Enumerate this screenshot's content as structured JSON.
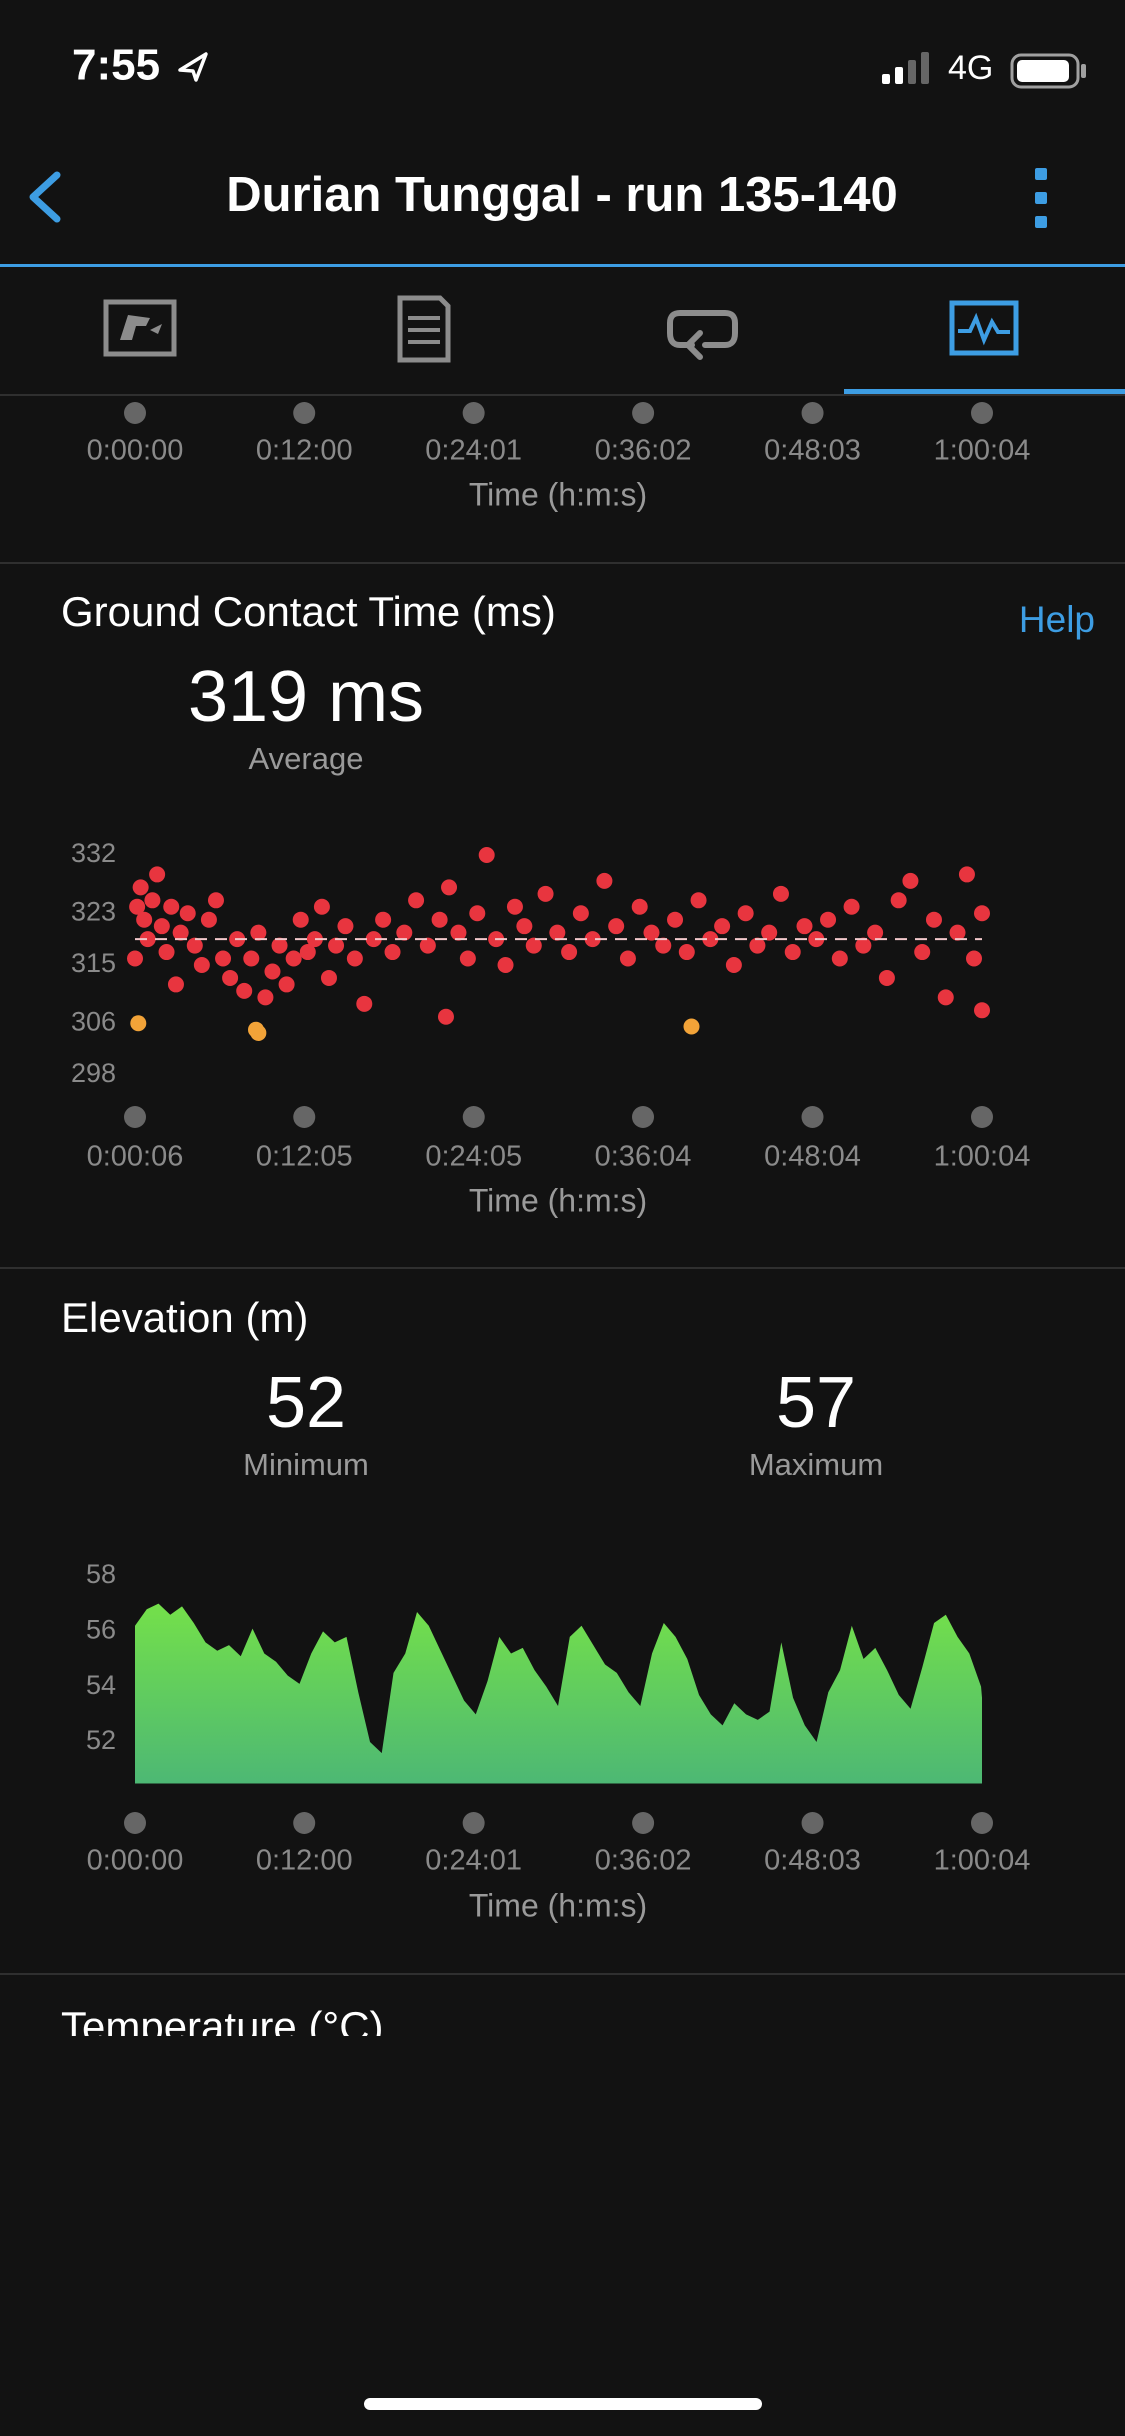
{
  "status_bar": {
    "time": "7:55",
    "network": "4G"
  },
  "header": {
    "title": "Durian Tunggal - run 135-140"
  },
  "next_section": {
    "title": "Temperature (°C)"
  },
  "chart_data": [
    {
      "type": "axis",
      "xlabel": "Time (h:m:s)",
      "xlim": [
        0,
        3604
      ],
      "xticks": [
        {
          "value": 0,
          "label": "0:00:00"
        },
        {
          "value": 720,
          "label": "0:12:00"
        },
        {
          "value": 1441,
          "label": "0:24:01"
        },
        {
          "value": 2162,
          "label": "0:36:02"
        },
        {
          "value": 2883,
          "label": "0:48:03"
        },
        {
          "value": 3604,
          "label": "1:00:04"
        }
      ]
    },
    {
      "type": "scatter",
      "title": "Ground Contact Time (ms)",
      "help": "Help",
      "average": {
        "value": 319,
        "label": "319 ms"
      },
      "average_caption": "Average",
      "average_color": "#f2c8cb",
      "xlabel": "Time (h:m:s)",
      "xlim": [
        6,
        3604
      ],
      "ylim": [
        298,
        332
      ],
      "yticks": [
        332,
        323,
        315,
        306,
        298
      ],
      "xticks": [
        {
          "value": 6,
          "label": "0:00:06"
        },
        {
          "value": 725,
          "label": "0:12:05"
        },
        {
          "value": 1445,
          "label": "0:24:05"
        },
        {
          "value": 2164,
          "label": "0:36:04"
        },
        {
          "value": 2884,
          "label": "0:48:04"
        },
        {
          "value": 3604,
          "label": "1:00:04"
        }
      ],
      "series": [
        {
          "color": "#e8353f",
          "x": [
            6,
            15,
            30,
            45,
            60,
            80,
            100,
            120,
            140,
            160,
            180,
            200,
            230,
            260,
            290,
            320,
            350,
            380,
            410,
            440,
            470,
            500,
            530,
            560,
            590,
            620,
            650,
            680,
            710,
            740,
            770,
            800,
            830,
            860,
            900,
            940,
            980,
            1020,
            1060,
            1100,
            1150,
            1200,
            1250,
            1300,
            1327,
            1340,
            1380,
            1420,
            1460,
            1500,
            1540,
            1580,
            1620,
            1660,
            1700,
            1750,
            1800,
            1850,
            1900,
            1950,
            2000,
            2050,
            2100,
            2150,
            2200,
            2250,
            2300,
            2350,
            2400,
            2450,
            2500,
            2550,
            2600,
            2650,
            2700,
            2750,
            2800,
            2850,
            2900,
            2950,
            3000,
            3050,
            3100,
            3150,
            3200,
            3250,
            3300,
            3350,
            3400,
            3450,
            3500,
            3540,
            3570,
            3604,
            3604
          ],
          "values": [
            316,
            324,
            327,
            322,
            319,
            325,
            329,
            321,
            317,
            324,
            312,
            320,
            323,
            318,
            315,
            322,
            325,
            316,
            313,
            319,
            311,
            316,
            320,
            310,
            314,
            318,
            312,
            316,
            322,
            317,
            319,
            324,
            313,
            318,
            321,
            316,
            309,
            319,
            322,
            317,
            320,
            325,
            318,
            322,
            307,
            327,
            320,
            316,
            323,
            332,
            319,
            315,
            324,
            321,
            318,
            326,
            320,
            317,
            323,
            319,
            328,
            321,
            316,
            324,
            320,
            318,
            322,
            317,
            325,
            319,
            321,
            315,
            323,
            318,
            320,
            326,
            317,
            321,
            319,
            322,
            316,
            324,
            318,
            320,
            313,
            325,
            328,
            317,
            322,
            310,
            320,
            329,
            316,
            323,
            308
          ]
        },
        {
          "color": "#f2a338",
          "x": [
            20,
            520,
            530,
            2370
          ],
          "values": [
            306,
            305,
            304.5,
            305.5
          ]
        }
      ]
    },
    {
      "type": "area",
      "title": "Elevation (m)",
      "stats": [
        {
          "value": 52,
          "label": "Minimum"
        },
        {
          "value": 57,
          "label": "Maximum"
        }
      ],
      "gradient": [
        "#74e04a",
        "#4db874"
      ],
      "xlabel": "Time (h:m:s)",
      "xlim": [
        0,
        3604
      ],
      "ylim": [
        50.5,
        58
      ],
      "yticks": [
        58,
        56,
        54,
        52
      ],
      "xticks": [
        {
          "value": 0,
          "label": "0:00:00"
        },
        {
          "value": 720,
          "label": "0:12:00"
        },
        {
          "value": 1441,
          "label": "0:24:01"
        },
        {
          "value": 2162,
          "label": "0:36:02"
        },
        {
          "value": 2883,
          "label": "0:48:03"
        },
        {
          "value": 3604,
          "label": "1:00:04"
        }
      ],
      "x": [
        0,
        50,
        100,
        150,
        200,
        250,
        300,
        350,
        400,
        450,
        500,
        550,
        600,
        650,
        700,
        750,
        800,
        850,
        900,
        950,
        1000,
        1050,
        1100,
        1150,
        1200,
        1250,
        1300,
        1350,
        1400,
        1450,
        1500,
        1550,
        1600,
        1650,
        1700,
        1750,
        1800,
        1850,
        1900,
        1950,
        2000,
        2050,
        2100,
        2150,
        2200,
        2250,
        2300,
        2350,
        2400,
        2450,
        2500,
        2550,
        2600,
        2650,
        2700,
        2750,
        2800,
        2850,
        2900,
        2950,
        3000,
        3050,
        3100,
        3150,
        3200,
        3250,
        3300,
        3350,
        3400,
        3450,
        3500,
        3550,
        3600,
        3604
      ],
      "values": [
        56.2,
        56.8,
        57,
        56.6,
        56.9,
        56.3,
        55.6,
        55.3,
        55.5,
        55.1,
        56.1,
        55.2,
        54.9,
        54.4,
        54.1,
        55.2,
        56,
        55.6,
        55.8,
        53.8,
        52,
        51.6,
        54.5,
        55.2,
        56.7,
        56.2,
        55.3,
        54.4,
        53.5,
        53,
        54.2,
        55.8,
        55.2,
        55.4,
        54.6,
        54,
        53.3,
        55.8,
        56.2,
        55.5,
        54.8,
        54.5,
        53.8,
        53.3,
        55.2,
        56.3,
        55.8,
        55,
        53.7,
        53,
        52.6,
        53.4,
        53,
        52.8,
        53.1,
        55.6,
        53.6,
        52.6,
        52,
        53.8,
        54.6,
        56.2,
        55,
        55.4,
        54.6,
        53.7,
        53.2,
        54.7,
        56.3,
        56.6,
        55.8,
        55.2,
        54,
        53.6
      ]
    }
  ]
}
